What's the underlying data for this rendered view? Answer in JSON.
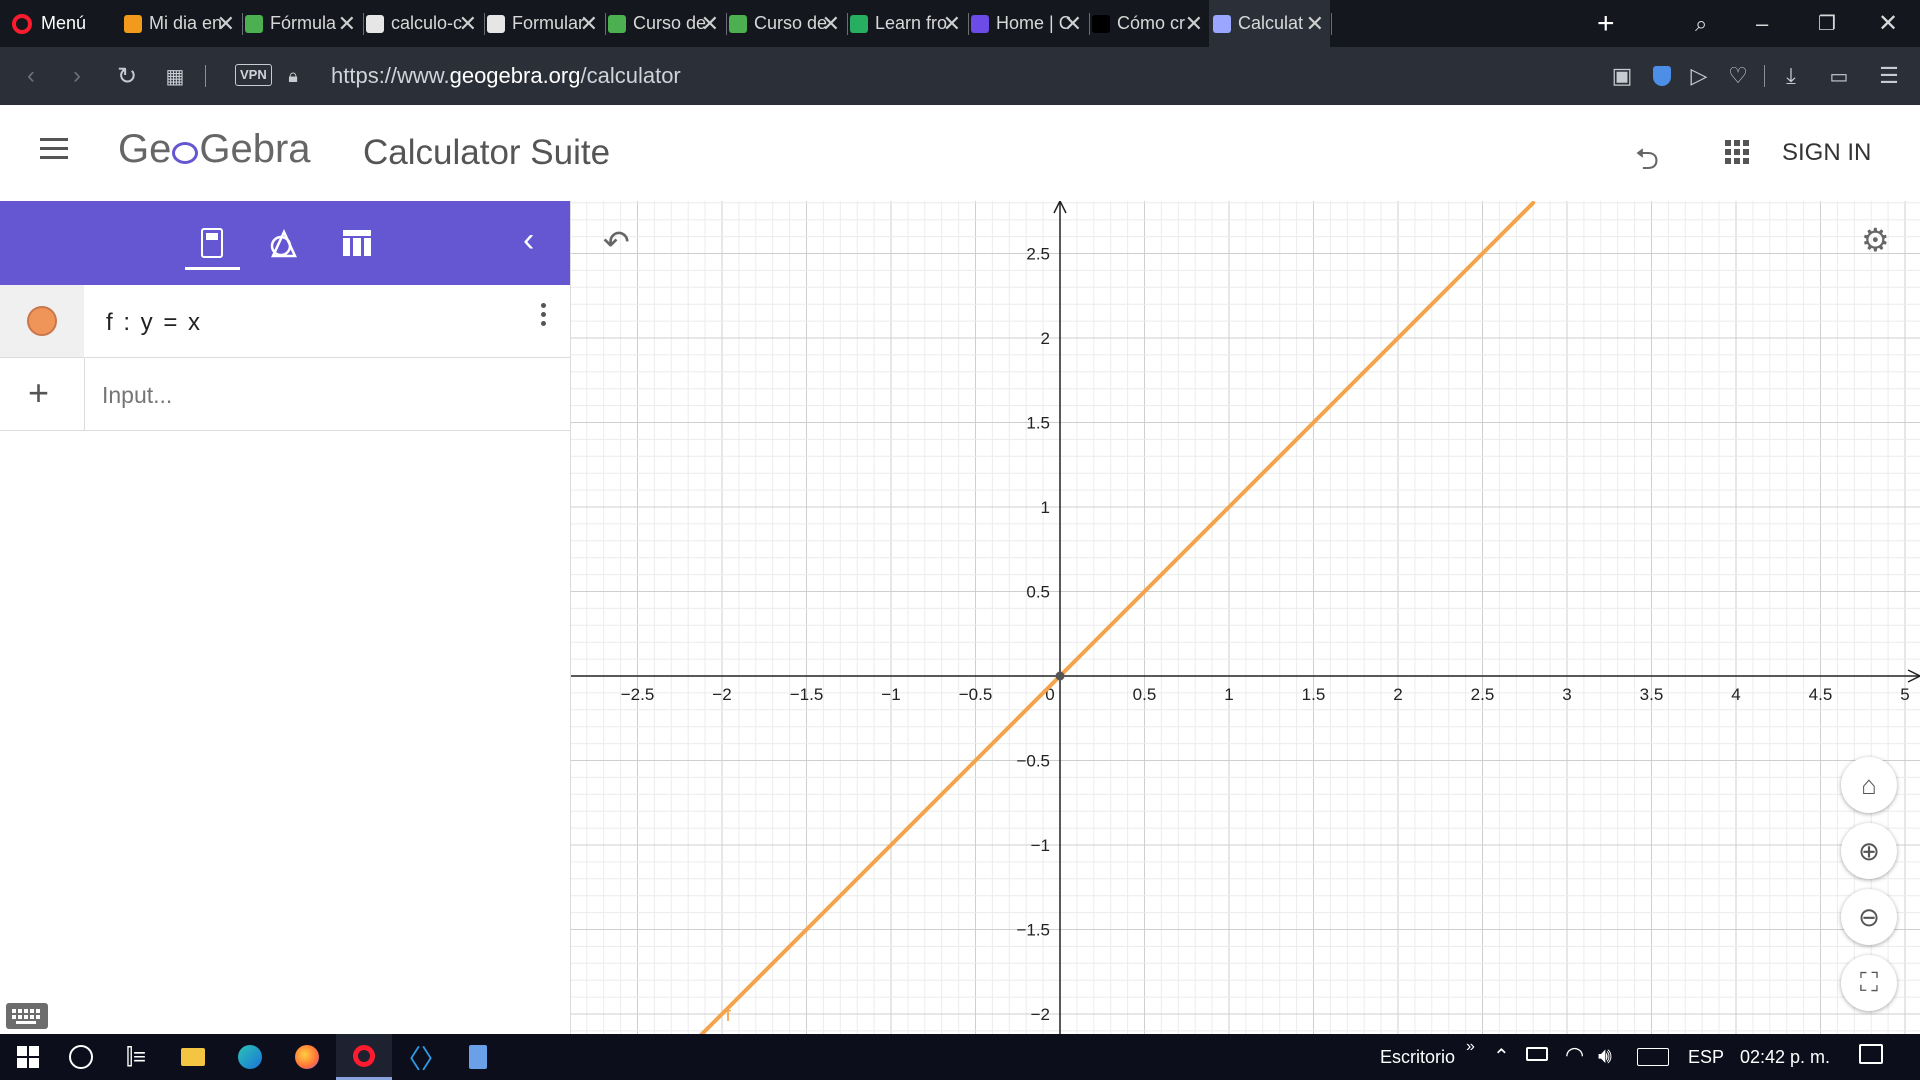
{
  "browser": {
    "menu_label": "Menú",
    "tabs": [
      {
        "title": "Mi dia en",
        "icon": "flame-icon",
        "color": "#f29a1b"
      },
      {
        "title": "Fórmula",
        "icon": "diamond-icon",
        "color": "#4caf50"
      },
      {
        "title": "calculo-c",
        "icon": "document-icon",
        "color": "#e6e6e6"
      },
      {
        "title": "Formular",
        "icon": "document-icon",
        "color": "#e6e6e6"
      },
      {
        "title": "Curso de",
        "icon": "diamond-icon",
        "color": "#4caf50"
      },
      {
        "title": "Curso de",
        "icon": "diamond-icon",
        "color": "#4caf50"
      },
      {
        "title": "Learn fro",
        "icon": "fi-icon",
        "color": "#27ae60"
      },
      {
        "title": "Home | C",
        "icon": "home-app-icon",
        "color": "#6b4ce6"
      },
      {
        "title": "Cómo cr",
        "icon": "l-icon",
        "color": "#000000"
      },
      {
        "title": "Calculat",
        "icon": "geogebra-icon",
        "color": "#9aa6ff"
      }
    ],
    "url_prefix": "https://www.",
    "url_domain": "geogebra.org",
    "url_path": "/calculator",
    "vpn_label": "VPN"
  },
  "app": {
    "logo_text_left": "Ge",
    "logo_text_right": "Gebra",
    "title": "Calculator Suite",
    "sign_in": "SIGN IN",
    "accent_color": "#6557d2"
  },
  "algebra": {
    "items": [
      {
        "label": "f : y = x",
        "color": "#f0955a"
      }
    ],
    "input_placeholder": "Input..."
  },
  "graph": {
    "line_label": "f",
    "line_color": "#f5a44b",
    "x_ticks": [
      "−2.5",
      "−2",
      "−1.5",
      "−1",
      "−0.5",
      "0",
      "0.5",
      "1",
      "1.5",
      "2",
      "2.5",
      "3",
      "3.5",
      "4",
      "4.5",
      "5"
    ],
    "y_ticks": [
      "2.5",
      "2",
      "1.5",
      "1",
      "0.5",
      "−0.5",
      "−1",
      "−1.5",
      "−2"
    ]
  },
  "chart_data": {
    "type": "line",
    "series": [
      {
        "name": "f",
        "x": [
          -2.2,
          2.8
        ],
        "y": [
          -2.2,
          2.8
        ]
      }
    ],
    "xlim": [
      -2.9,
      5.1
    ],
    "ylim": [
      -2.1,
      2.8
    ],
    "grid": true,
    "title": "",
    "xlabel": "",
    "ylabel": ""
  },
  "taskbar": {
    "desktop_label": "Escritorio",
    "lang": "ESP",
    "time": "02:42 p. m."
  }
}
